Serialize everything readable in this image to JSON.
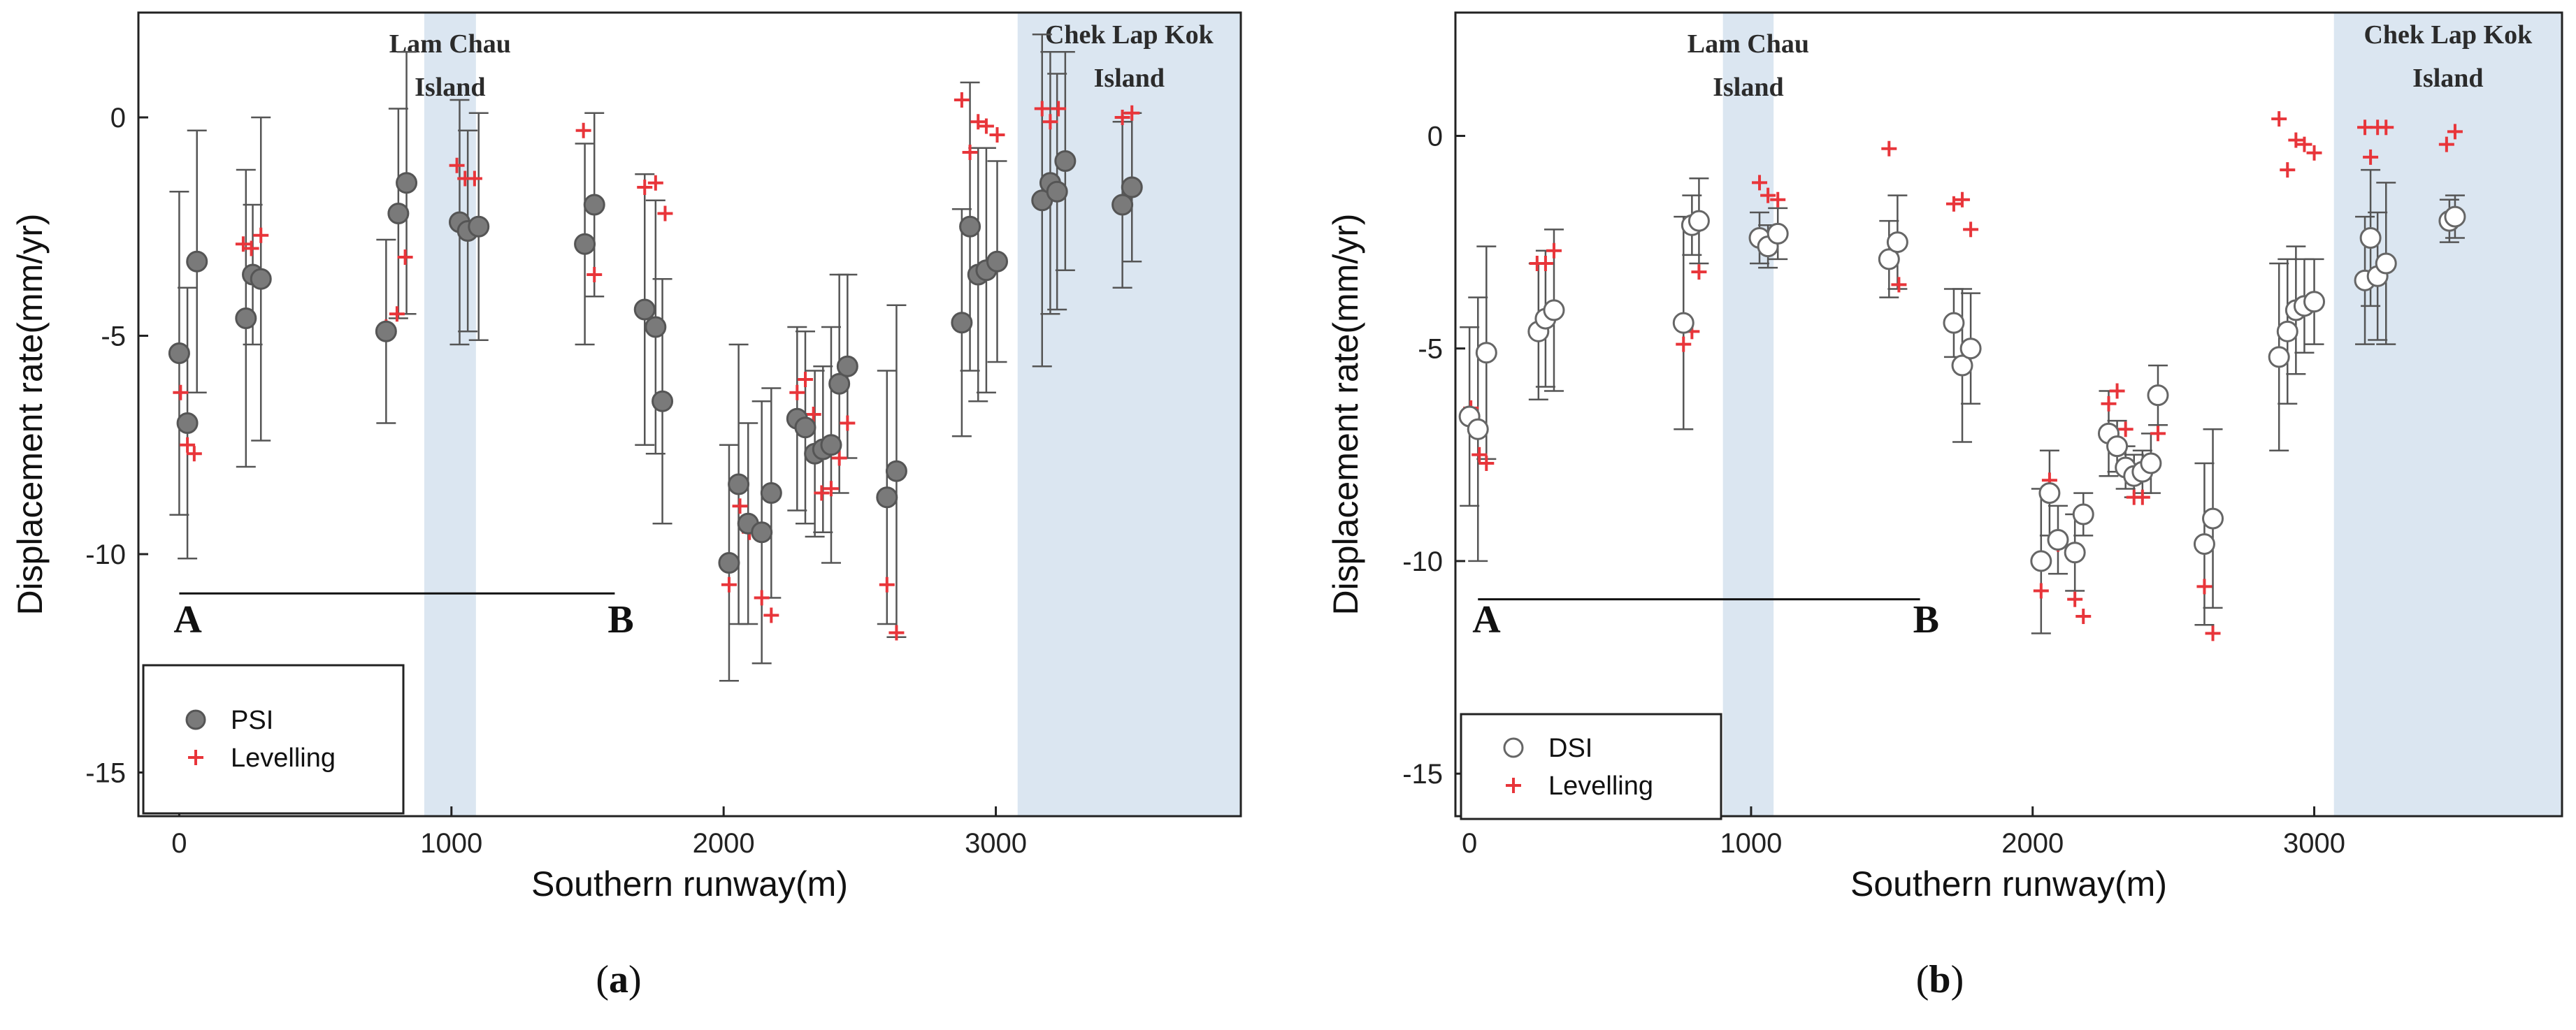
{
  "chart_data": [
    {
      "type": "scatter",
      "panel_label": "a",
      "xlabel": "Southern runway(m)",
      "ylabel": "Displacement rate(mm/yr)",
      "xlim": [
        -150,
        3900
      ],
      "ylim": [
        -16,
        2.4
      ],
      "xticks": [
        "0",
        "1000",
        "2000",
        "3000"
      ],
      "yticks": [
        "0",
        "-5",
        "-10",
        "-15"
      ],
      "regions": [
        {
          "name": "Lam Chau Island",
          "label_lines": [
            "Lam Chau",
            "Island"
          ],
          "x_range": [
            900,
            1090
          ]
        },
        {
          "name": "Chek Lap Kok Island",
          "label_lines": [
            "Chek Lap Kok",
            "Island"
          ],
          "x_range": [
            3080,
            3900
          ]
        }
      ],
      "profile_line": {
        "start_label": "A",
        "end_label": "B",
        "x_range": [
          0,
          1600
        ],
        "y": -10.9
      },
      "legend": {
        "position": "bottom-left",
        "entries": [
          "PSI",
          "Levelling"
        ]
      },
      "series": [
        {
          "name": "PSI",
          "marker": "filled-circle",
          "points": [
            {
              "x": 0,
              "y": -5.4,
              "err": 3.7
            },
            {
              "x": 30,
              "y": -7.0,
              "err": 3.1
            },
            {
              "x": 65,
              "y": -3.3,
              "err": 3.0
            },
            {
              "x": 245,
              "y": -4.6,
              "err": 3.4
            },
            {
              "x": 270,
              "y": -3.6,
              "err": 1.6
            },
            {
              "x": 300,
              "y": -3.7,
              "err": 3.7
            },
            {
              "x": 760,
              "y": -4.9,
              "err": 2.1
            },
            {
              "x": 805,
              "y": -2.2,
              "err": 2.4
            },
            {
              "x": 835,
              "y": -1.5,
              "err": 3.0
            },
            {
              "x": 1030,
              "y": -2.4,
              "err": 2.8
            },
            {
              "x": 1060,
              "y": -2.6,
              "err": 2.3
            },
            {
              "x": 1100,
              "y": -2.5,
              "err": 2.6
            },
            {
              "x": 1490,
              "y": -2.9,
              "err": 2.3
            },
            {
              "x": 1525,
              "y": -2.0,
              "err": 2.1
            },
            {
              "x": 1710,
              "y": -4.4,
              "err": 3.1
            },
            {
              "x": 1750,
              "y": -4.8,
              "err": 2.9
            },
            {
              "x": 1775,
              "y": -6.5,
              "err": 2.8
            },
            {
              "x": 2020,
              "y": -10.2,
              "err": 2.7
            },
            {
              "x": 2055,
              "y": -8.4,
              "err": 3.2
            },
            {
              "x": 2090,
              "y": -9.3,
              "err": 2.3
            },
            {
              "x": 2140,
              "y": -9.5,
              "err": 3.0
            },
            {
              "x": 2175,
              "y": -8.6,
              "err": 2.4
            },
            {
              "x": 2270,
              "y": -6.9,
              "err": 2.1
            },
            {
              "x": 2300,
              "y": -7.1,
              "err": 2.2
            },
            {
              "x": 2335,
              "y": -7.7,
              "err": 1.9
            },
            {
              "x": 2365,
              "y": -7.6,
              "err": 1.9
            },
            {
              "x": 2395,
              "y": -7.5,
              "err": 2.7
            },
            {
              "x": 2425,
              "y": -6.1,
              "err": 2.5
            },
            {
              "x": 2455,
              "y": -5.7,
              "err": 2.1
            },
            {
              "x": 2600,
              "y": -8.7,
              "err": 2.9
            },
            {
              "x": 2635,
              "y": -8.1,
              "err": 3.8
            },
            {
              "x": 2875,
              "y": -4.7,
              "err": 2.6
            },
            {
              "x": 2905,
              "y": -2.5,
              "err": 3.3
            },
            {
              "x": 2935,
              "y": -3.6,
              "err": 2.9
            },
            {
              "x": 2965,
              "y": -3.5,
              "err": 2.8
            },
            {
              "x": 3005,
              "y": -3.3,
              "err": 2.3
            },
            {
              "x": 3170,
              "y": -1.9,
              "err": 3.8
            },
            {
              "x": 3200,
              "y": -1.5,
              "err": 3.0
            },
            {
              "x": 3225,
              "y": -1.7,
              "err": 2.7
            },
            {
              "x": 3255,
              "y": -1.0,
              "err": 2.5
            },
            {
              "x": 3465,
              "y": -2.0,
              "err": 1.9
            },
            {
              "x": 3500,
              "y": -1.6,
              "err": 1.7
            }
          ]
        },
        {
          "name": "Levelling",
          "marker": "plus",
          "points": [
            {
              "x": 5,
              "y": -6.3
            },
            {
              "x": 30,
              "y": -7.5
            },
            {
              "x": 55,
              "y": -7.7
            },
            {
              "x": 235,
              "y": -2.9
            },
            {
              "x": 265,
              "y": -3.0
            },
            {
              "x": 300,
              "y": -2.7
            },
            {
              "x": 760,
              "y": -4.8
            },
            {
              "x": 800,
              "y": -4.5
            },
            {
              "x": 830,
              "y": -3.2
            },
            {
              "x": 1020,
              "y": -1.1
            },
            {
              "x": 1050,
              "y": -1.4
            },
            {
              "x": 1085,
              "y": -1.4
            },
            {
              "x": 1485,
              "y": -0.3
            },
            {
              "x": 1525,
              "y": -3.6
            },
            {
              "x": 1710,
              "y": -1.6
            },
            {
              "x": 1750,
              "y": -1.5
            },
            {
              "x": 1785,
              "y": -2.2
            },
            {
              "x": 2020,
              "y": -10.7
            },
            {
              "x": 2060,
              "y": -8.9
            },
            {
              "x": 2095,
              "y": -9.5
            },
            {
              "x": 2140,
              "y": -11.0
            },
            {
              "x": 2175,
              "y": -11.4
            },
            {
              "x": 2270,
              "y": -6.3
            },
            {
              "x": 2300,
              "y": -6.0
            },
            {
              "x": 2330,
              "y": -6.8
            },
            {
              "x": 2360,
              "y": -8.6
            },
            {
              "x": 2395,
              "y": -8.5
            },
            {
              "x": 2425,
              "y": -7.8
            },
            {
              "x": 2455,
              "y": -7.0
            },
            {
              "x": 2600,
              "y": -10.7
            },
            {
              "x": 2635,
              "y": -11.8
            },
            {
              "x": 2875,
              "y": 0.4
            },
            {
              "x": 2905,
              "y": -0.8
            },
            {
              "x": 2935,
              "y": -0.1
            },
            {
              "x": 2965,
              "y": -0.2
            },
            {
              "x": 3005,
              "y": -0.4
            },
            {
              "x": 3170,
              "y": 0.2
            },
            {
              "x": 3200,
              "y": -0.1
            },
            {
              "x": 3230,
              "y": 0.2
            },
            {
              "x": 3465,
              "y": 0.0
            },
            {
              "x": 3500,
              "y": 0.1
            }
          ]
        }
      ]
    },
    {
      "type": "scatter",
      "panel_label": "b",
      "xlabel": "Southern runway(m)",
      "ylabel": "Displacement rate(mm/yr)",
      "xlim": [
        -50,
        3880
      ],
      "ylim": [
        -16,
        2.9
      ],
      "xticks": [
        "0",
        "1000",
        "2000",
        "3000"
      ],
      "yticks": [
        "0",
        "-5",
        "-10",
        "-15"
      ],
      "regions": [
        {
          "name": "Lam Chau Island",
          "label_lines": [
            "Lam Chau",
            "Island"
          ],
          "x_range": [
            900,
            1080
          ]
        },
        {
          "name": "Chek Lap Kok Island",
          "label_lines": [
            "Chek Lap Kok",
            "Island"
          ],
          "x_range": [
            3070,
            3880
          ]
        }
      ],
      "profile_line": {
        "start_label": "A",
        "end_label": "B",
        "x_range": [
          30,
          1600
        ],
        "y": -10.9
      },
      "legend": {
        "position": "bottom-left",
        "entries": [
          "DSI",
          "Levelling"
        ]
      },
      "series": [
        {
          "name": "DSI",
          "marker": "open-circle",
          "points": [
            {
              "x": 0,
              "y": -6.6,
              "err": 2.1
            },
            {
              "x": 30,
              "y": -6.9,
              "err": 3.1
            },
            {
              "x": 60,
              "y": -5.1,
              "err": 2.5
            },
            {
              "x": 245,
              "y": -4.6,
              "err": 1.6
            },
            {
              "x": 270,
              "y": -4.3,
              "err": 1.6
            },
            {
              "x": 300,
              "y": -4.1,
              "err": 1.9
            },
            {
              "x": 760,
              "y": -4.4,
              "err": 2.5
            },
            {
              "x": 790,
              "y": -2.1,
              "err": 0.7
            },
            {
              "x": 815,
              "y": -2.0,
              "err": 1.0
            },
            {
              "x": 1030,
              "y": -2.4,
              "err": 0.6
            },
            {
              "x": 1060,
              "y": -2.6,
              "err": 0.5
            },
            {
              "x": 1095,
              "y": -2.3,
              "err": 0.6
            },
            {
              "x": 1490,
              "y": -2.9,
              "err": 0.9
            },
            {
              "x": 1520,
              "y": -2.5,
              "err": 1.1
            },
            {
              "x": 1720,
              "y": -4.4,
              "err": 0.8
            },
            {
              "x": 1750,
              "y": -5.4,
              "err": 1.8
            },
            {
              "x": 1780,
              "y": -5.0,
              "err": 1.3
            },
            {
              "x": 2030,
              "y": -10.0,
              "err": 1.7
            },
            {
              "x": 2060,
              "y": -8.4,
              "err": 1.0
            },
            {
              "x": 2090,
              "y": -9.5,
              "err": 0.8
            },
            {
              "x": 2150,
              "y": -9.8,
              "err": 0.9
            },
            {
              "x": 2180,
              "y": -8.9,
              "err": 0.5
            },
            {
              "x": 2270,
              "y": -7.0,
              "err": 1.0
            },
            {
              "x": 2300,
              "y": -7.3,
              "err": 0.6
            },
            {
              "x": 2330,
              "y": -7.8,
              "err": 0.5
            },
            {
              "x": 2360,
              "y": -8.0,
              "err": 0.5
            },
            {
              "x": 2390,
              "y": -7.9,
              "err": 0.5
            },
            {
              "x": 2420,
              "y": -7.7,
              "err": 0.7
            },
            {
              "x": 2445,
              "y": -6.1,
              "err": 0.7
            },
            {
              "x": 2610,
              "y": -9.6,
              "err": 1.9
            },
            {
              "x": 2640,
              "y": -9.0,
              "err": 2.1
            },
            {
              "x": 2875,
              "y": -5.2,
              "err": 2.2
            },
            {
              "x": 2905,
              "y": -4.6,
              "err": 1.7
            },
            {
              "x": 2935,
              "y": -4.1,
              "err": 1.5
            },
            {
              "x": 2965,
              "y": -4.0,
              "err": 1.1
            },
            {
              "x": 3000,
              "y": -3.9,
              "err": 1.0
            },
            {
              "x": 3180,
              "y": -3.4,
              "err": 1.5
            },
            {
              "x": 3200,
              "y": -2.4,
              "err": 1.6
            },
            {
              "x": 3225,
              "y": -3.3,
              "err": 1.5
            },
            {
              "x": 3255,
              "y": -3.0,
              "err": 1.9
            },
            {
              "x": 3480,
              "y": -2.0,
              "err": 0.5
            },
            {
              "x": 3500,
              "y": -1.9,
              "err": 0.5
            }
          ]
        },
        {
          "name": "Levelling",
          "marker": "plus",
          "points": [
            {
              "x": 5,
              "y": -6.4
            },
            {
              "x": 35,
              "y": -7.5
            },
            {
              "x": 60,
              "y": -7.7
            },
            {
              "x": 240,
              "y": -3.0
            },
            {
              "x": 270,
              "y": -3.0
            },
            {
              "x": 300,
              "y": -2.7
            },
            {
              "x": 760,
              "y": -4.9
            },
            {
              "x": 790,
              "y": -4.6
            },
            {
              "x": 815,
              "y": -3.2
            },
            {
              "x": 1030,
              "y": -1.1
            },
            {
              "x": 1060,
              "y": -1.4
            },
            {
              "x": 1095,
              "y": -1.5
            },
            {
              "x": 1490,
              "y": -0.3
            },
            {
              "x": 1525,
              "y": -3.5
            },
            {
              "x": 1720,
              "y": -1.6
            },
            {
              "x": 1750,
              "y": -1.5
            },
            {
              "x": 1780,
              "y": -2.2
            },
            {
              "x": 2030,
              "y": -10.7
            },
            {
              "x": 2060,
              "y": -8.1
            },
            {
              "x": 2090,
              "y": -9.6
            },
            {
              "x": 2150,
              "y": -10.9
            },
            {
              "x": 2180,
              "y": -11.3
            },
            {
              "x": 2270,
              "y": -6.3
            },
            {
              "x": 2300,
              "y": -6.0
            },
            {
              "x": 2330,
              "y": -6.9
            },
            {
              "x": 2360,
              "y": -8.5
            },
            {
              "x": 2390,
              "y": -8.5
            },
            {
              "x": 2420,
              "y": -7.8
            },
            {
              "x": 2445,
              "y": -7.0
            },
            {
              "x": 2610,
              "y": -10.6
            },
            {
              "x": 2640,
              "y": -11.7
            },
            {
              "x": 2875,
              "y": 0.4
            },
            {
              "x": 2905,
              "y": -0.8
            },
            {
              "x": 2935,
              "y": -0.1
            },
            {
              "x": 2965,
              "y": -0.2
            },
            {
              "x": 3000,
              "y": -0.4
            },
            {
              "x": 3180,
              "y": 0.2
            },
            {
              "x": 3200,
              "y": -0.5
            },
            {
              "x": 3225,
              "y": 0.2
            },
            {
              "x": 3255,
              "y": 0.2
            },
            {
              "x": 3470,
              "y": -0.2
            },
            {
              "x": 3500,
              "y": 0.1
            }
          ]
        }
      ]
    }
  ],
  "colors": {
    "psi_fill": "#7a7a7a",
    "psi_stroke": "#555555",
    "dsi_fill": "#ffffff",
    "dsi_stroke": "#666666",
    "levelling": "#e8353a",
    "errorbar": "#555555",
    "region_fill": "#dbe6f1",
    "axis": "#222222"
  }
}
